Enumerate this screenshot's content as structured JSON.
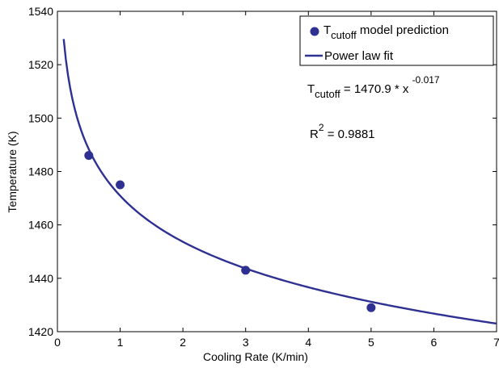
{
  "colors": {
    "series": "#2e3192",
    "axis": "#000000",
    "background": "#ffffff"
  },
  "chart_data": {
    "type": "scatter",
    "title": "",
    "xlabel": "Cooling Rate (K/min)",
    "ylabel": "Temperature (K)",
    "xlim": [
      0,
      7
    ],
    "ylim": [
      1420,
      1540
    ],
    "xticks": [
      0,
      1,
      2,
      3,
      4,
      5,
      6,
      7
    ],
    "yticks": [
      1420,
      1440,
      1460,
      1480,
      1500,
      1520,
      1540
    ],
    "grid": false,
    "legend_position": "top-right",
    "series": [
      {
        "name": "T cutoff model prediction",
        "kind": "scatter",
        "marker": "filled-circle",
        "x": [
          0.5,
          1,
          3,
          5
        ],
        "y": [
          1486,
          1475,
          1443,
          1429
        ]
      },
      {
        "name": "Power law fit",
        "kind": "line",
        "function": "power",
        "coefficient": 1470.9,
        "exponent": -0.017,
        "x_range": [
          0.1,
          7
        ]
      }
    ],
    "legend": {
      "entry1": {
        "main": "T",
        "sub": "cutoff",
        "rest": " model prediction"
      },
      "entry2": "Power law fit"
    },
    "annotations": {
      "equation": {
        "main": "T",
        "sub": "cutoff",
        "rest": " = 1470.9 * x ",
        "sup": "-0.017"
      },
      "r2": {
        "main": "R",
        "sup": "2",
        "rest": " = 0.9881"
      }
    }
  }
}
